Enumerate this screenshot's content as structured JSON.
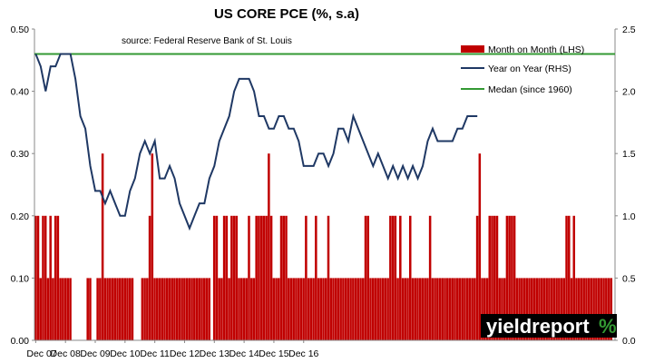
{
  "chart_data": {
    "type": "bar+line",
    "title": "US CORE PCE (%, s.a)",
    "source": "source: Federal Reserve Bank of St. Louis",
    "x_tick_labels": [
      "Dec 07",
      "Dec 08",
      "Dec 09",
      "Dec 10",
      "Dec 11",
      "Dec 12",
      "Dec 13",
      "Dec 14",
      "Dec 15",
      "Dec 16"
    ],
    "left_axis": {
      "ticks": [
        "0.00",
        "0.10",
        "0.20",
        "0.30",
        "0.40",
        "0.50"
      ],
      "ylim": [
        0,
        0.5
      ]
    },
    "right_axis": {
      "ticks": [
        "0.0",
        "0.5",
        "1.0",
        "1.5",
        "2.0",
        "2.5"
      ],
      "ylim": [
        0,
        2.5
      ]
    },
    "months_start": "Dec 07",
    "series": [
      {
        "name": "Month on Month (LHS)",
        "type": "bar",
        "axis": "left",
        "color": "#c00000",
        "values": [
          0.2,
          0.2,
          0.1,
          0.2,
          0.2,
          0.1,
          0.2,
          0.1,
          0.2,
          0.2,
          0.1,
          0.1,
          0.1,
          0.1,
          0.1,
          0.0,
          0.0,
          0.0,
          0.0,
          0.0,
          0.0,
          0.1,
          0.1,
          0.0,
          0.0,
          0.1,
          0.1,
          0.3,
          0.1,
          0.1,
          0.1,
          0.1,
          0.1,
          0.1,
          0.1,
          0.1,
          0.1,
          0.1,
          0.1,
          0.1,
          0.0,
          0.0,
          0.0,
          0.1,
          0.1,
          0.1,
          0.2,
          0.3,
          0.1,
          0.1,
          0.1,
          0.1,
          0.1,
          0.1,
          0.1,
          0.1,
          0.1,
          0.1,
          0.1,
          0.1,
          0.1,
          0.1,
          0.1,
          0.1,
          0.1,
          0.1,
          0.1,
          0.1,
          0.1,
          0.1,
          0.1,
          0.0,
          0.2,
          0.2,
          0.1,
          0.1,
          0.2,
          0.2,
          0.1,
          0.2,
          0.2,
          0.2,
          0.1,
          0.1,
          0.1,
          0.1,
          0.2,
          0.1,
          0.1,
          0.2,
          0.2,
          0.2,
          0.2,
          0.2,
          0.3,
          0.2,
          0.1,
          0.1,
          0.1,
          0.2,
          0.2,
          0.2,
          0.1,
          0.1,
          0.1,
          0.1,
          0.1,
          0.1,
          0.1,
          0.2,
          0.1,
          0.1,
          0.1,
          0.2,
          0.1,
          0.1,
          0.1,
          0.1,
          0.2,
          0.1,
          0.1,
          0.1,
          0.1,
          0.1,
          0.1,
          0.1,
          0.1,
          0.1,
          0.1,
          0.1,
          0.1,
          0.1,
          0.1,
          0.2,
          0.2,
          0.1,
          0.1,
          0.1,
          0.1,
          0.1,
          0.1,
          0.1,
          0.1,
          0.2,
          0.2,
          0.2,
          0.1,
          0.2,
          0.1,
          0.1,
          0.1,
          0.2,
          0.1,
          0.1,
          0.1,
          0.1,
          0.1,
          0.1,
          0.1,
          0.2,
          0.1,
          0.1,
          0.1,
          0.1,
          0.1,
          0.1,
          0.1,
          0.1,
          0.1,
          0.1,
          0.1,
          0.1,
          0.1,
          0.1,
          0.1,
          0.1,
          0.1,
          0.1,
          0.2,
          0.3,
          0.1,
          0.1,
          0.1,
          0.2,
          0.2,
          0.2,
          0.2,
          0.1,
          0.1,
          0.1,
          0.2,
          0.2,
          0.2,
          0.2,
          0.1,
          0.1,
          0.1,
          0.1,
          0.1,
          0.1,
          0.1,
          0.1,
          0.1,
          0.1,
          0.1,
          0.1,
          0.1,
          0.1,
          0.1,
          0.1,
          0.1,
          0.1,
          0.1,
          0.1,
          0.2,
          0.2,
          0.1,
          0.2,
          0.1,
          0.1,
          0.1,
          0.1,
          0.1,
          0.1,
          0.1,
          0.1,
          0.1,
          0.1,
          0.1,
          0.1,
          0.1,
          0.1,
          0.1,
          0.0
        ]
      },
      {
        "name": "Year on Year (RHS)",
        "type": "line",
        "axis": "right",
        "color": "#1f3864",
        "points": [
          [
            0,
            2.3
          ],
          [
            2,
            2.2
          ],
          [
            4,
            2.0
          ],
          [
            6,
            2.2
          ],
          [
            8,
            2.2
          ],
          [
            10,
            2.3
          ],
          [
            12,
            2.3
          ],
          [
            14,
            2.3
          ],
          [
            16,
            2.1
          ],
          [
            18,
            1.8
          ],
          [
            20,
            1.7
          ],
          [
            22,
            1.4
          ],
          [
            24,
            1.2
          ],
          [
            26,
            1.2
          ],
          [
            28,
            1.1
          ],
          [
            30,
            1.2
          ],
          [
            32,
            1.1
          ],
          [
            34,
            1.0
          ],
          [
            36,
            1.0
          ],
          [
            38,
            1.2
          ],
          [
            40,
            1.3
          ],
          [
            42,
            1.5
          ],
          [
            44,
            1.6
          ],
          [
            46,
            1.5
          ],
          [
            48,
            1.6
          ],
          [
            50,
            1.3
          ],
          [
            52,
            1.3
          ],
          [
            54,
            1.4
          ],
          [
            56,
            1.3
          ],
          [
            58,
            1.1
          ],
          [
            60,
            1.0
          ],
          [
            62,
            0.9
          ],
          [
            64,
            1.0
          ],
          [
            66,
            1.1
          ],
          [
            68,
            1.1
          ],
          [
            70,
            1.3
          ],
          [
            72,
            1.4
          ],
          [
            74,
            1.6
          ],
          [
            76,
            1.7
          ],
          [
            78,
            1.8
          ],
          [
            80,
            2.0
          ],
          [
            82,
            2.1
          ],
          [
            84,
            2.1
          ],
          [
            86,
            2.1
          ],
          [
            88,
            2.0
          ],
          [
            90,
            1.8
          ],
          [
            92,
            1.8
          ],
          [
            94,
            1.7
          ],
          [
            96,
            1.7
          ],
          [
            98,
            1.8
          ],
          [
            100,
            1.8
          ],
          [
            102,
            1.7
          ],
          [
            104,
            1.7
          ],
          [
            106,
            1.6
          ],
          [
            108,
            1.4
          ],
          [
            110,
            1.4
          ],
          [
            112,
            1.4
          ],
          [
            114,
            1.5
          ],
          [
            116,
            1.5
          ],
          [
            118,
            1.4
          ],
          [
            120,
            1.5
          ],
          [
            122,
            1.7
          ],
          [
            124,
            1.7
          ],
          [
            126,
            1.6
          ],
          [
            128,
            1.8
          ],
          [
            130,
            1.7
          ],
          [
            132,
            1.6
          ],
          [
            134,
            1.5
          ],
          [
            136,
            1.4
          ],
          [
            138,
            1.5
          ],
          [
            140,
            1.4
          ],
          [
            142,
            1.3
          ],
          [
            144,
            1.4
          ],
          [
            146,
            1.3
          ],
          [
            148,
            1.4
          ],
          [
            150,
            1.3
          ],
          [
            152,
            1.4
          ],
          [
            154,
            1.3
          ],
          [
            156,
            1.4
          ],
          [
            158,
            1.6
          ],
          [
            160,
            1.7
          ],
          [
            162,
            1.6
          ],
          [
            164,
            1.6
          ],
          [
            166,
            1.6
          ],
          [
            168,
            1.6
          ],
          [
            170,
            1.7
          ],
          [
            172,
            1.7
          ],
          [
            174,
            1.8
          ],
          [
            176,
            1.8
          ],
          [
            178,
            1.8
          ]
        ]
      },
      {
        "name": "Medan (since 1960)",
        "type": "line",
        "axis": "right",
        "color": "#339933",
        "value": 2.3
      }
    ],
    "legend_position": "top-right",
    "grid": false
  },
  "logo": {
    "text": "yieldreport",
    "symbol": "%",
    "bg": "#000000",
    "accent": "#339933"
  },
  "colors": {
    "bar": "#c00000",
    "yoy": "#1f3864",
    "median": "#339933"
  }
}
